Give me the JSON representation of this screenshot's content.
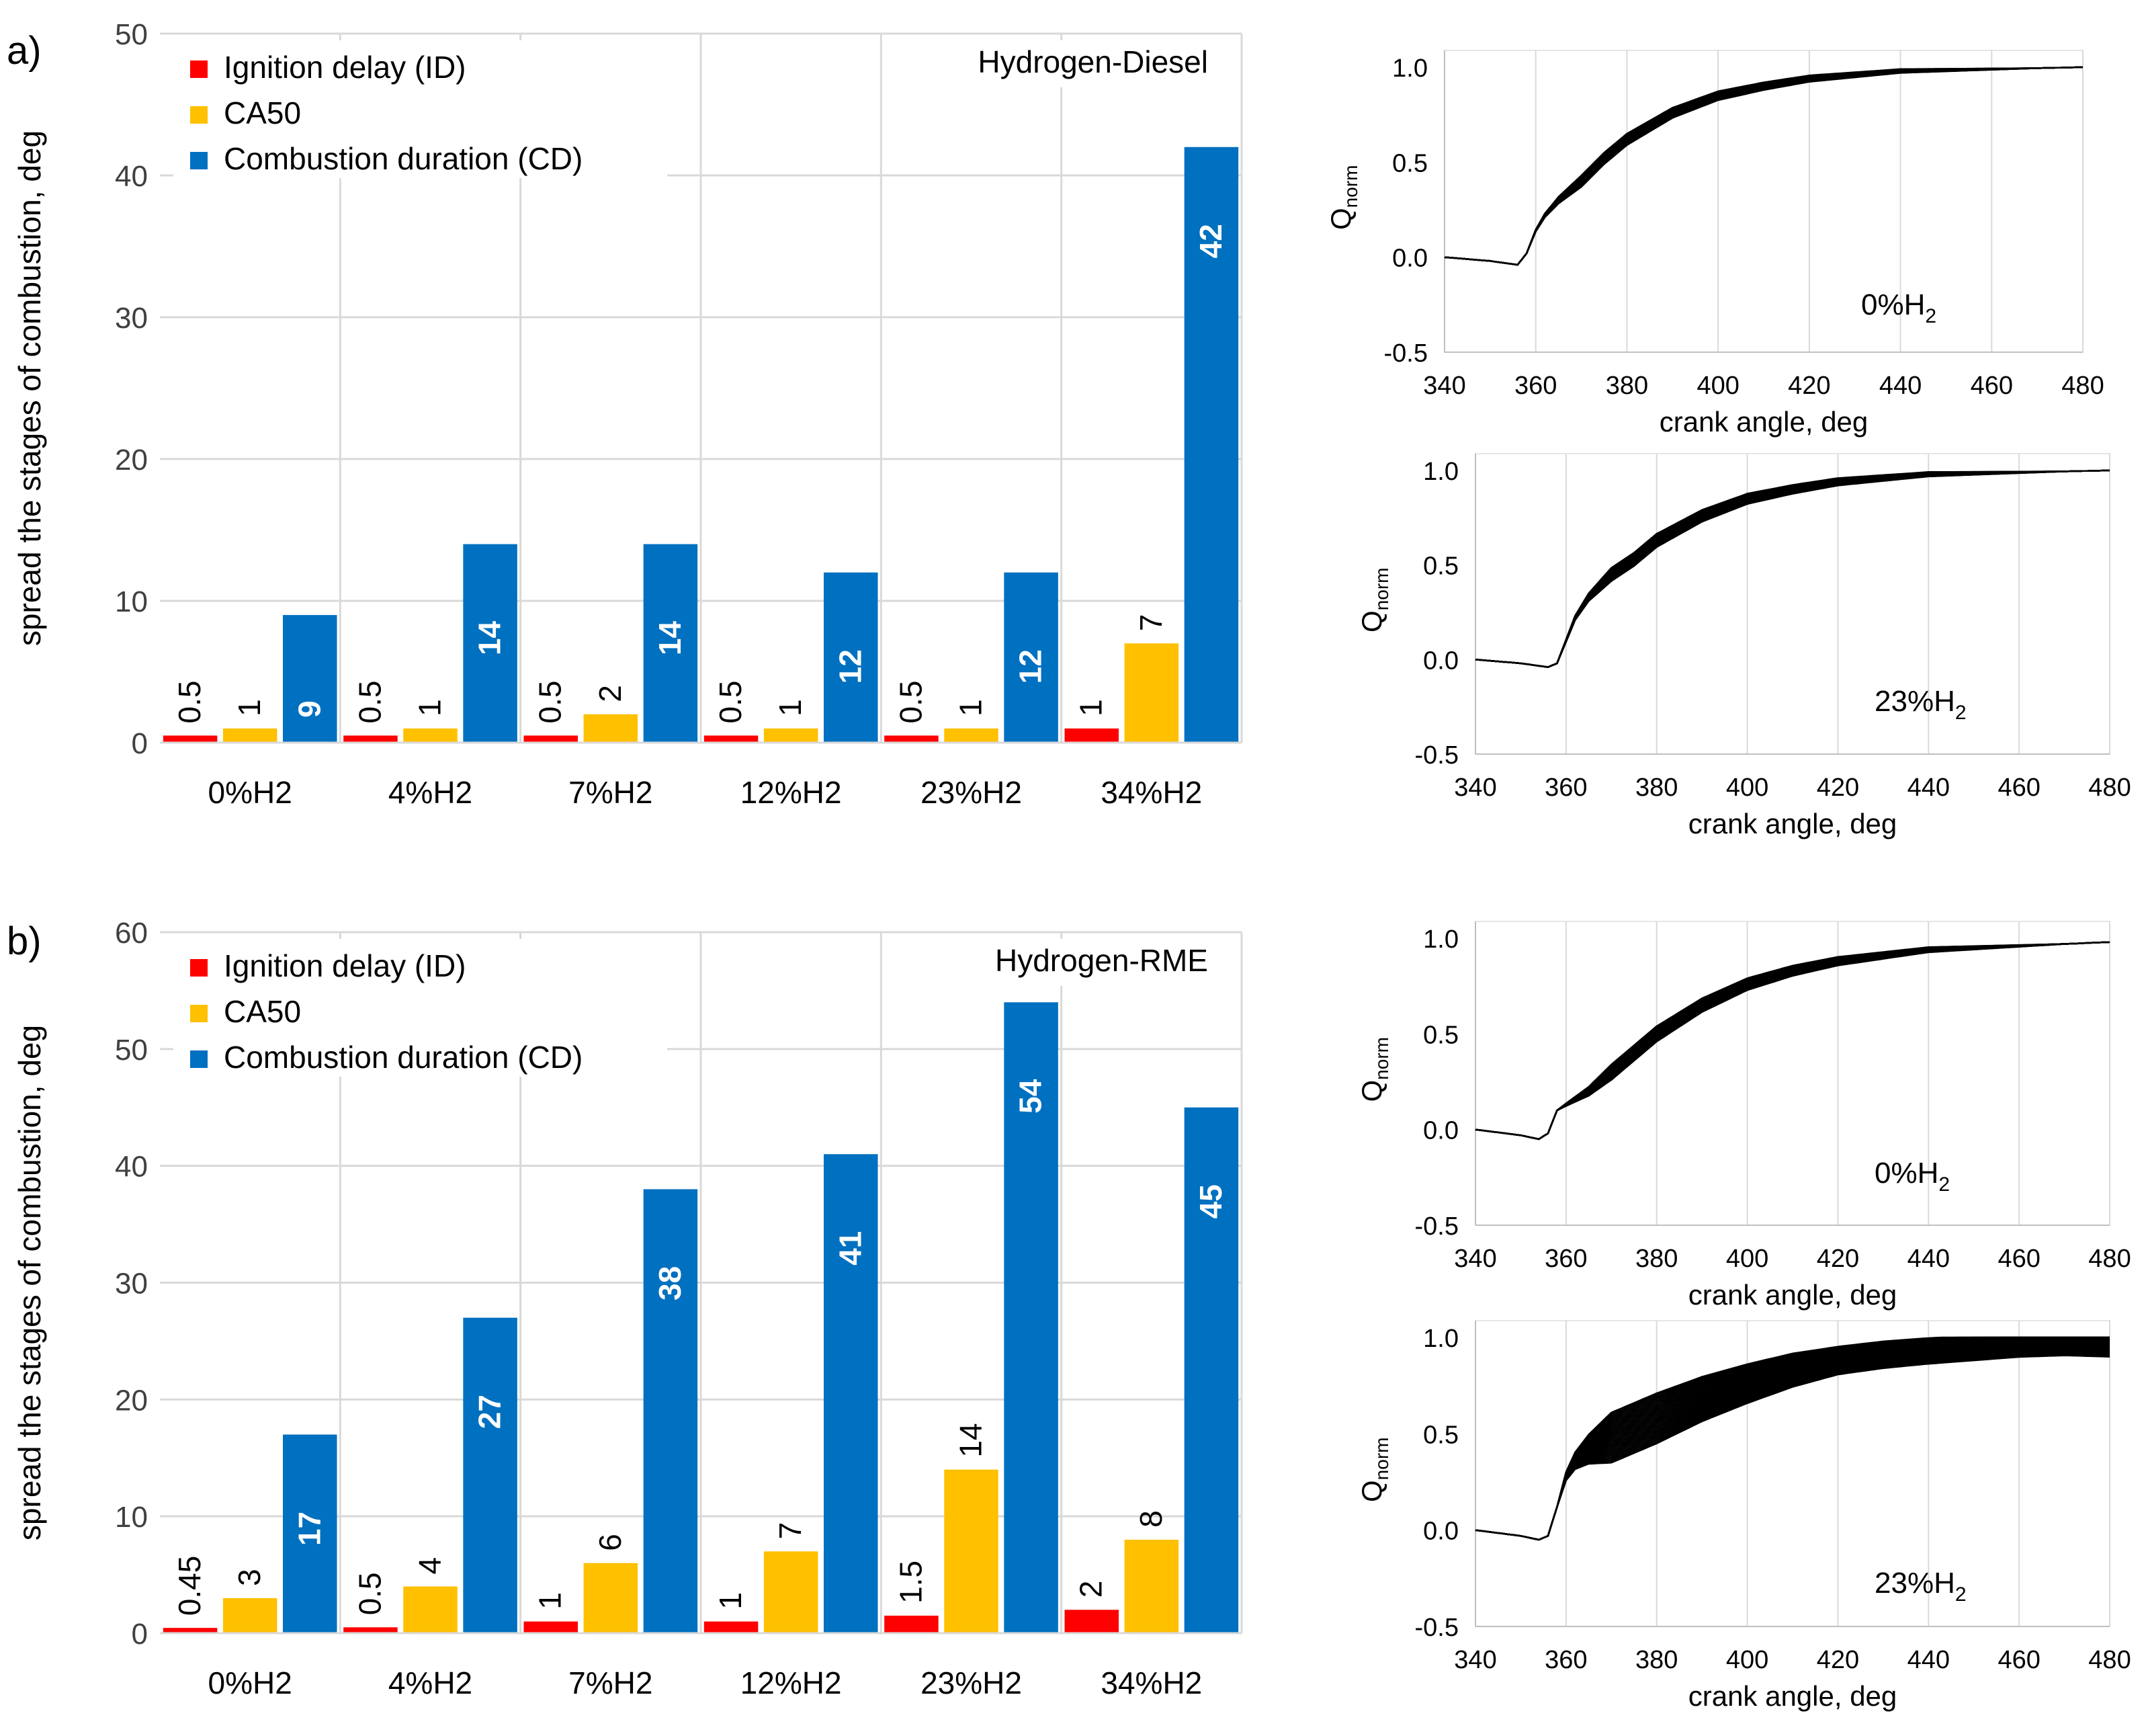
{
  "panel_labels": {
    "a": "a)",
    "b": "b)"
  },
  "colors": {
    "ignition_delay": "#ff0000",
    "ca50": "#ffc000",
    "combustion_duration": "#0070c0",
    "grid": "#d9d9d9",
    "axis_text": "#404040",
    "curve": "#000000"
  },
  "chart_data": [
    {
      "id": "a",
      "type": "bar",
      "title": "Hydrogen-Diesel",
      "xlabel": "",
      "ylabel": "spread the stages of combustion, deg",
      "ylim": [
        0,
        50
      ],
      "yticks": [
        0,
        10,
        20,
        30,
        40,
        50
      ],
      "categories": [
        "0%H2",
        "4%H2",
        "7%H2",
        "12%H2",
        "23%H2",
        "34%H2"
      ],
      "series": [
        {
          "name": "Ignition delay (ID)",
          "key": "ignition_delay",
          "values": [
            0.5,
            0.5,
            0.5,
            0.5,
            0.5,
            1
          ],
          "labels": [
            "0.5",
            "0.5",
            "0.5",
            "0.5",
            "0.5",
            "1"
          ]
        },
        {
          "name": "CA50",
          "key": "ca50",
          "values": [
            1,
            1,
            2,
            1,
            1,
            7
          ],
          "labels": [
            "1",
            "1",
            "2",
            "1",
            "1",
            "7"
          ]
        },
        {
          "name": "Combustion duration (CD)",
          "key": "combustion_duration",
          "values": [
            9,
            14,
            14,
            12,
            12,
            42
          ],
          "labels": [
            "9",
            "14",
            "14",
            "12",
            "12",
            "42"
          ]
        }
      ],
      "legend": "top-left"
    },
    {
      "id": "b",
      "type": "bar",
      "title": "Hydrogen-RME",
      "xlabel": "",
      "ylabel": "spread the stages of combustion, deg",
      "ylim": [
        0,
        60
      ],
      "yticks": [
        0,
        10,
        20,
        30,
        40,
        50,
        60
      ],
      "categories": [
        "0%H2",
        "4%H2",
        "7%H2",
        "12%H2",
        "23%H2",
        "34%H2"
      ],
      "series": [
        {
          "name": "Ignition delay (ID)",
          "key": "ignition_delay",
          "values": [
            0.45,
            0.5,
            1,
            1,
            1.5,
            2
          ],
          "labels": [
            "0.45",
            "0.5",
            "1",
            "1",
            "1.5",
            "2"
          ]
        },
        {
          "name": "CA50",
          "key": "ca50",
          "values": [
            3,
            4,
            6,
            7,
            14,
            8
          ],
          "labels": [
            "3",
            "4",
            "6",
            "7",
            "14",
            "8"
          ]
        },
        {
          "name": "Combustion duration (CD)",
          "key": "combustion_duration",
          "values": [
            17,
            27,
            38,
            41,
            54,
            45
          ],
          "labels": [
            "17",
            "27",
            "38",
            "41",
            "54",
            "45"
          ]
        }
      ],
      "legend": "top-left"
    },
    {
      "id": "a1",
      "type": "line",
      "annotation": "0%H",
      "annotation_sub": "2",
      "xlabel": "crank angle, deg",
      "ylabel": "Q",
      "ylabel_sub": "norm",
      "xlim": [
        340,
        480
      ],
      "ylim": [
        -0.5,
        1.0
      ],
      "xticks": [
        340,
        360,
        380,
        400,
        420,
        440,
        460,
        480
      ],
      "yticks": [
        -0.5,
        0.0,
        0.5,
        1.0
      ],
      "ytick_labels": [
        "-0.5",
        "0.0",
        "0.5",
        "1.0"
      ],
      "cycles": {
        "count": 25,
        "spread": 0.03,
        "late_spread": 0.0
      },
      "x": [
        340,
        350,
        356,
        358,
        360,
        362,
        365,
        370,
        375,
        380,
        390,
        400,
        410,
        420,
        430,
        440,
        460,
        480
      ],
      "y": [
        0.0,
        -0.02,
        -0.04,
        0.02,
        0.14,
        0.22,
        0.3,
        0.4,
        0.52,
        0.62,
        0.76,
        0.85,
        0.9,
        0.94,
        0.96,
        0.98,
        0.99,
        1.0
      ]
    },
    {
      "id": "a2",
      "type": "line",
      "annotation": "23%H",
      "annotation_sub": "2",
      "xlabel": "crank angle, deg",
      "ylabel": "Q",
      "ylabel_sub": "norm",
      "xlim": [
        340,
        480
      ],
      "ylim": [
        -0.5,
        1.0
      ],
      "xticks": [
        340,
        360,
        380,
        400,
        420,
        440,
        460,
        480
      ],
      "yticks": [
        -0.5,
        0.0,
        0.5,
        1.0
      ],
      "ytick_labels": [
        "-0.5",
        "0.0",
        "0.5",
        "1.0"
      ],
      "cycles": {
        "count": 25,
        "spread": 0.035,
        "late_spread": 0.0
      },
      "x": [
        340,
        350,
        356,
        358,
        360,
        362,
        365,
        370,
        375,
        380,
        390,
        400,
        410,
        420,
        430,
        440,
        460,
        480
      ],
      "y": [
        0.0,
        -0.02,
        -0.04,
        -0.02,
        0.1,
        0.22,
        0.33,
        0.45,
        0.53,
        0.63,
        0.76,
        0.85,
        0.9,
        0.94,
        0.96,
        0.98,
        0.99,
        1.0
      ]
    },
    {
      "id": "b1",
      "type": "line",
      "annotation": "0%H",
      "annotation_sub": "2",
      "xlabel": "crank angle, deg",
      "ylabel": "Q",
      "ylabel_sub": "norm",
      "xlim": [
        340,
        480
      ],
      "ylim": [
        -0.5,
        1.0
      ],
      "xticks": [
        340,
        360,
        380,
        400,
        420,
        440,
        460,
        480
      ],
      "yticks": [
        -0.5,
        0.0,
        0.5,
        1.0
      ],
      "ytick_labels": [
        "-0.5",
        "0.0",
        "0.5",
        "1.0"
      ],
      "cycles": {
        "count": 25,
        "spread": 0.04,
        "late_spread": 0.0
      },
      "x": [
        340,
        350,
        354,
        356,
        358,
        360,
        365,
        370,
        375,
        380,
        390,
        400,
        410,
        420,
        430,
        440,
        460,
        480
      ],
      "y": [
        0.0,
        -0.03,
        -0.05,
        -0.02,
        0.1,
        0.13,
        0.2,
        0.3,
        0.4,
        0.5,
        0.65,
        0.76,
        0.83,
        0.88,
        0.91,
        0.94,
        0.96,
        0.98
      ]
    },
    {
      "id": "b2",
      "type": "line",
      "annotation": "23%H",
      "annotation_sub": "2",
      "xlabel": "crank angle, deg",
      "ylabel": "Q",
      "ylabel_sub": "norm",
      "xlim": [
        340,
        480
      ],
      "ylim": [
        -0.5,
        1.0
      ],
      "xticks": [
        340,
        360,
        380,
        400,
        420,
        440,
        460,
        480
      ],
      "yticks": [
        -0.5,
        0.0,
        0.5,
        1.0
      ],
      "ytick_labels": [
        "-0.5",
        "0.0",
        "0.5",
        "1.0"
      ],
      "cycles": {
        "count": 30,
        "spread": 0.13,
        "late_spread": 0.07
      },
      "x": [
        340,
        350,
        354,
        356,
        358,
        360,
        362,
        365,
        370,
        375,
        380,
        390,
        400,
        410,
        420,
        430,
        440,
        460,
        480
      ],
      "y": [
        0.0,
        -0.03,
        -0.05,
        -0.03,
        0.12,
        0.28,
        0.36,
        0.42,
        0.48,
        0.53,
        0.58,
        0.68,
        0.76,
        0.83,
        0.88,
        0.91,
        0.93,
        0.96,
        0.97
      ]
    }
  ]
}
